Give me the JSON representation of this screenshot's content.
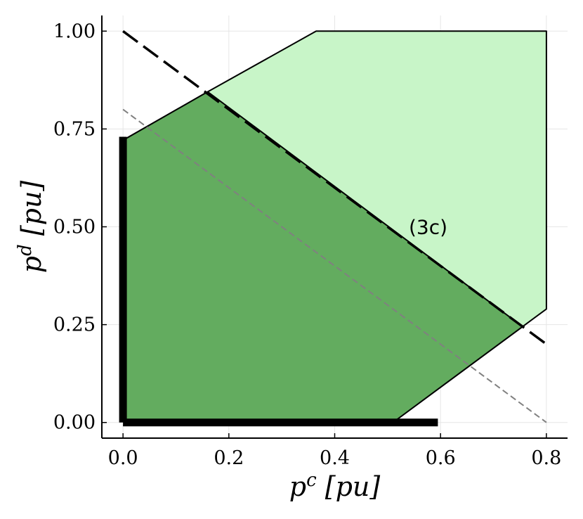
{
  "chart_data": {
    "type": "area",
    "xlabel": "p^c [pu]",
    "ylabel": "p^d [pu]",
    "xlim": [
      -0.04,
      0.84
    ],
    "ylim": [
      -0.04,
      1.04
    ],
    "x_ticks": [
      0.0,
      0.2,
      0.4,
      0.6,
      0.8
    ],
    "x_tick_labels": [
      "0.0",
      "0.2",
      "0.4",
      "0.6",
      "0.8"
    ],
    "y_ticks": [
      0.0,
      0.25,
      0.5,
      0.75,
      1.0
    ],
    "y_tick_labels": [
      "0.00",
      "0.25",
      "0.50",
      "0.75",
      "1.00"
    ],
    "grid": true,
    "legend": "none",
    "colors": {
      "outer_region": "#c8f5c8",
      "inner_region": "#63ac5f",
      "outline": "#000000",
      "constraint_line": "#000000",
      "reference_line": "#808080",
      "grid": "#e6e6e6"
    },
    "series": [
      {
        "kind": "filled-polygon",
        "points": [
          [
            0.005,
            0.725
          ],
          [
            0.16,
            0.845
          ],
          [
            0.365,
            1.0
          ],
          [
            0.8,
            1.0
          ],
          [
            0.8,
            0.29
          ],
          [
            0.755,
            0.245
          ],
          [
            0.515,
            0.005
          ],
          [
            0.005,
            0.005
          ]
        ]
      },
      {
        "kind": "filled-polygon",
        "points": [
          [
            0.005,
            0.725
          ],
          [
            0.16,
            0.845
          ],
          [
            0.755,
            0.245
          ],
          [
            0.515,
            0.005
          ],
          [
            0.005,
            0.005
          ]
        ]
      },
      {
        "kind": "dashed-line",
        "points": [
          [
            0.0,
            1.0
          ],
          [
            0.8,
            0.2
          ]
        ]
      },
      {
        "kind": "thin-dashed-line",
        "points": [
          [
            0.0,
            0.8
          ],
          [
            0.8,
            0.0
          ]
        ]
      },
      {
        "kind": "thick-segment",
        "points": [
          [
            0.0,
            0.0
          ],
          [
            0.0,
            0.73
          ]
        ]
      },
      {
        "kind": "thick-segment",
        "points": [
          [
            0.0,
            0.0
          ],
          [
            0.595,
            0.0
          ]
        ]
      }
    ],
    "annotations": [
      {
        "text": "(3c)",
        "x": 0.54,
        "y": 0.5
      }
    ]
  }
}
